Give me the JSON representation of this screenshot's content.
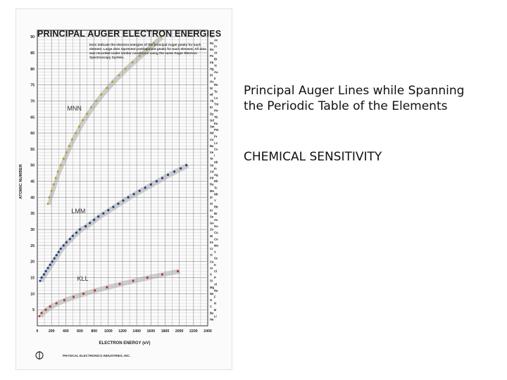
{
  "chart_data": {
    "type": "scatter",
    "title": "PRINCIPAL AUGER ELECTRON ENERGIES",
    "note": "Dots indicate the electron energies of the principal Auger peaks for each element. Large dots represent predominant peaks for each element. All data was recorded under similar conditions using the same Auger Electron Spectroscopy System.",
    "xlabel": "ELECTRON ENERGY (eV)",
    "ylabel": "ATOMIC NUMBER",
    "xlim": [
      0,
      2400
    ],
    "ylim": [
      0,
      92
    ],
    "x_ticks": [
      "0",
      "200",
      "400",
      "600",
      "800",
      "1000",
      "1200",
      "1400",
      "1600",
      "1800",
      "2000",
      "2200",
      "2400"
    ],
    "y_ticks": [
      "5",
      "10",
      "15",
      "20",
      "25",
      "30",
      "35",
      "40",
      "45",
      "50",
      "55",
      "60",
      "65",
      "70",
      "75",
      "80",
      "85",
      "90"
    ],
    "grid": true,
    "series": [
      {
        "name": "KLL",
        "color": "#b03a2e",
        "points": [
          [
            30,
            3
          ],
          [
            60,
            4
          ],
          [
            120,
            5
          ],
          [
            180,
            6
          ],
          [
            270,
            7
          ],
          [
            380,
            8
          ],
          [
            510,
            9
          ],
          [
            650,
            10
          ],
          [
            810,
            11
          ],
          [
            980,
            12
          ],
          [
            1160,
            13
          ],
          [
            1350,
            14
          ],
          [
            1550,
            15
          ],
          [
            1760,
            16
          ],
          [
            1980,
            17
          ]
        ]
      },
      {
        "name": "LMM",
        "color": "#1f3d8a",
        "points": [
          [
            40,
            14
          ],
          [
            60,
            15
          ],
          [
            95,
            16
          ],
          [
            120,
            17
          ],
          [
            150,
            18
          ],
          [
            180,
            19
          ],
          [
            210,
            20
          ],
          [
            240,
            21
          ],
          [
            270,
            22
          ],
          [
            300,
            23
          ],
          [
            330,
            24
          ],
          [
            370,
            25
          ],
          [
            410,
            26
          ],
          [
            460,
            27
          ],
          [
            500,
            28
          ],
          [
            550,
            29
          ],
          [
            600,
            30
          ],
          [
            680,
            31
          ],
          [
            740,
            32
          ],
          [
            800,
            33
          ],
          [
            860,
            34
          ],
          [
            930,
            35
          ],
          [
            1000,
            36
          ],
          [
            1070,
            37
          ],
          [
            1140,
            38
          ],
          [
            1210,
            39
          ],
          [
            1280,
            40
          ],
          [
            1360,
            41
          ],
          [
            1440,
            42
          ],
          [
            1520,
            43
          ],
          [
            1600,
            44
          ],
          [
            1680,
            45
          ],
          [
            1760,
            46
          ],
          [
            1840,
            47
          ],
          [
            1930,
            48
          ],
          [
            2020,
            49
          ],
          [
            2100,
            50
          ]
        ]
      },
      {
        "name": "MNN",
        "color": "#b8a02a",
        "points": [
          [
            150,
            38
          ],
          [
            170,
            40
          ],
          [
            200,
            42
          ],
          [
            230,
            44
          ],
          [
            260,
            46
          ],
          [
            290,
            48
          ],
          [
            330,
            50
          ],
          [
            370,
            52
          ],
          [
            410,
            54
          ],
          [
            450,
            56
          ],
          [
            490,
            58
          ],
          [
            540,
            60
          ],
          [
            590,
            62
          ],
          [
            640,
            64
          ],
          [
            700,
            66
          ],
          [
            760,
            68
          ],
          [
            830,
            70
          ],
          [
            900,
            72
          ],
          [
            980,
            74
          ],
          [
            1060,
            76
          ],
          [
            1150,
            78
          ],
          [
            1240,
            80
          ],
          [
            1340,
            82
          ],
          [
            1440,
            84
          ],
          [
            1540,
            86
          ],
          [
            1640,
            88
          ],
          [
            1740,
            90
          ]
        ]
      }
    ],
    "element_labels": [
      "Th",
      "Ac",
      "Ra",
      "Fr",
      "Rn",
      "At",
      "Po",
      "Bi",
      "Pb",
      "Tl",
      "Hg",
      "Au",
      "Pt",
      "Ir",
      "Os",
      "Re",
      "W",
      "Ta",
      "Hf",
      "Lu",
      "Yb",
      "Tm",
      "Er",
      "Ho",
      "Dy",
      "Tb",
      "Gd",
      "Eu",
      "Sm",
      "Pm",
      "Nd",
      "Pr",
      "Ce",
      "La",
      "Ba",
      "Cs",
      "Xe",
      "I",
      "Te",
      "Sb",
      "Sn",
      "In",
      "Cd",
      "Ag",
      "Pd",
      "Rh",
      "Ru",
      "Tc",
      "Mo",
      "Nb",
      "Zr",
      "Y",
      "Sr",
      "Rb",
      "Kr",
      "Br",
      "Se",
      "As",
      "Ge",
      "Ga",
      "Zn",
      "Cu",
      "Ni",
      "Co",
      "Fe",
      "Mn",
      "Cr",
      "V",
      "Ti",
      "Sc",
      "Ca",
      "K",
      "Ar",
      "Cl",
      "S",
      "P",
      "Si",
      "Al",
      "Mg",
      "Na",
      "Ne",
      "F",
      "O",
      "N",
      "C",
      "B",
      "Be",
      "Li",
      "He"
    ],
    "footer": {
      "company": "PHYSICAL ELECTRONICS INDUSTRIES, INC."
    }
  },
  "captions": {
    "line1": "Principal Auger Lines while Spanning the Periodic Table of the Elements",
    "line2": "CHEMICAL SENSITIVITY"
  },
  "colors": {
    "band": "#9a9a9a",
    "grid": "#8d8d8d",
    "text": "#111111"
  }
}
